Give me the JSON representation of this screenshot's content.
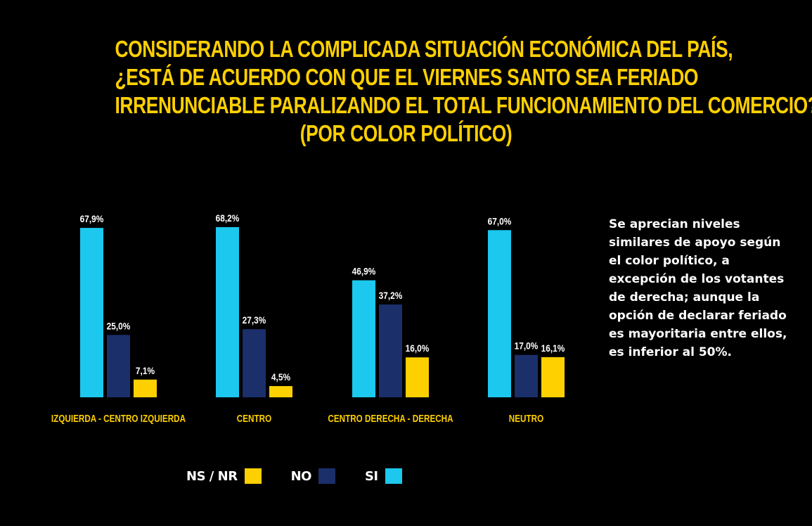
{
  "title_lines": [
    "CONSIDERANDO LA COMPLICADA SITUACIÓN ECONÓMICA DEL PAÍS,",
    "¿ESTÁ DE ACUERDO CON QUE EL VIERNES SANTO SEA FERIADO",
    "IRRENUNCIABLE PARALIZANDO EL TOTAL FUNCIONAMIENTO DEL COMERCIO?",
    "(POR COLOR POLÍTICO)"
  ],
  "note": "Se aprecian niveles similares de apoyo según el color político, a excepción de los votantes de derecha; aunque la opción de declarar feriado es mayoritaria entre ellos, es inferior al 50%.",
  "colors": {
    "si": "#1CC8EE",
    "no": "#1B2F6B",
    "nsnr": "#FFD000",
    "title": "#FFD000",
    "background": "#000000"
  },
  "legend": [
    {
      "label": "NS / NR",
      "series": "nsnr"
    },
    {
      "label": "NO",
      "series": "no"
    },
    {
      "label": "SI",
      "series": "si"
    }
  ],
  "chart_data": {
    "type": "bar",
    "categories": [
      "IZQUIERDA - CENTRO IZQUIERDA",
      "CENTRO",
      "CENTRO DERECHA - DERECHA",
      "NEUTRO"
    ],
    "series": [
      {
        "name": "SI",
        "key": "si",
        "values": [
          67.9,
          68.2,
          46.9,
          67.0
        ],
        "labels": [
          "67,9%",
          "68,2%",
          "46,9%",
          "67,0%"
        ]
      },
      {
        "name": "NO",
        "key": "no",
        "values": [
          25.0,
          27.3,
          37.2,
          17.0
        ],
        "labels": [
          "25,0%",
          "27,3%",
          "37,2%",
          "17,0%"
        ]
      },
      {
        "name": "NS / NR",
        "key": "nsnr",
        "values": [
          7.1,
          4.5,
          16.0,
          16.1
        ],
        "labels": [
          "7,1%",
          "4,5%",
          "16,0%",
          "16,1%"
        ]
      }
    ],
    "ylim": [
      0,
      70
    ],
    "grid": false,
    "legend_position": "bottom"
  }
}
